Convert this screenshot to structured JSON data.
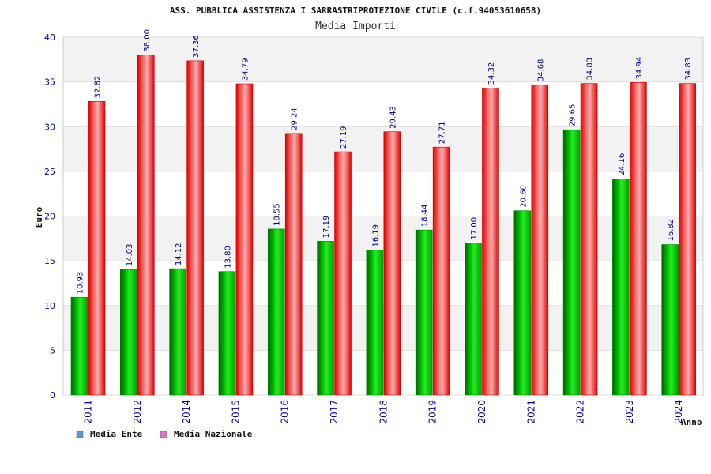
{
  "chart_data": {
    "type": "bar",
    "title": "ASS. PUBBLICA ASSISTENZA I SARRASTRIPROTEZIONE CIVILE (c.f.94053610658)",
    "subtitle": "Media Importi",
    "xlabel": "Anno",
    "ylabel": "Euro",
    "ylim": [
      0,
      40
    ],
    "yticks": [
      0,
      5,
      10,
      15,
      20,
      25,
      30,
      35,
      40
    ],
    "grid": true,
    "legend_position": "bottom-left",
    "categories": [
      "2011",
      "2012",
      "2014",
      "2015",
      "2016",
      "2017",
      "2018",
      "2019",
      "2020",
      "2021",
      "2022",
      "2023",
      "2024"
    ],
    "series": [
      {
        "name": "Media Ente",
        "values": [
          10.93,
          14.03,
          14.12,
          13.8,
          18.55,
          17.19,
          16.19,
          18.44,
          17.0,
          20.6,
          29.65,
          24.16,
          16.82
        ],
        "labels": [
          "10.93",
          "14.03",
          "14.12",
          "13.80",
          "18.55",
          "17.19",
          "16.19",
          "18.44",
          "17.00",
          "20.60",
          "29.65",
          "24.16",
          "16.82"
        ],
        "color": "#00cc00",
        "legend_color": "#5b9bd5"
      },
      {
        "name": "Media Nazionale",
        "values": [
          32.82,
          38.0,
          37.36,
          34.79,
          29.24,
          27.19,
          29.43,
          27.71,
          34.32,
          34.68,
          34.83,
          34.94,
          34.83
        ],
        "labels": [
          "32.82",
          "38.00",
          "37.36",
          "34.79",
          "29.24",
          "27.19",
          "29.43",
          "27.71",
          "34.32",
          "34.68",
          "34.83",
          "34.94",
          "34.83"
        ],
        "color": "#ff2222",
        "legend_color": "#e377c2"
      }
    ]
  }
}
